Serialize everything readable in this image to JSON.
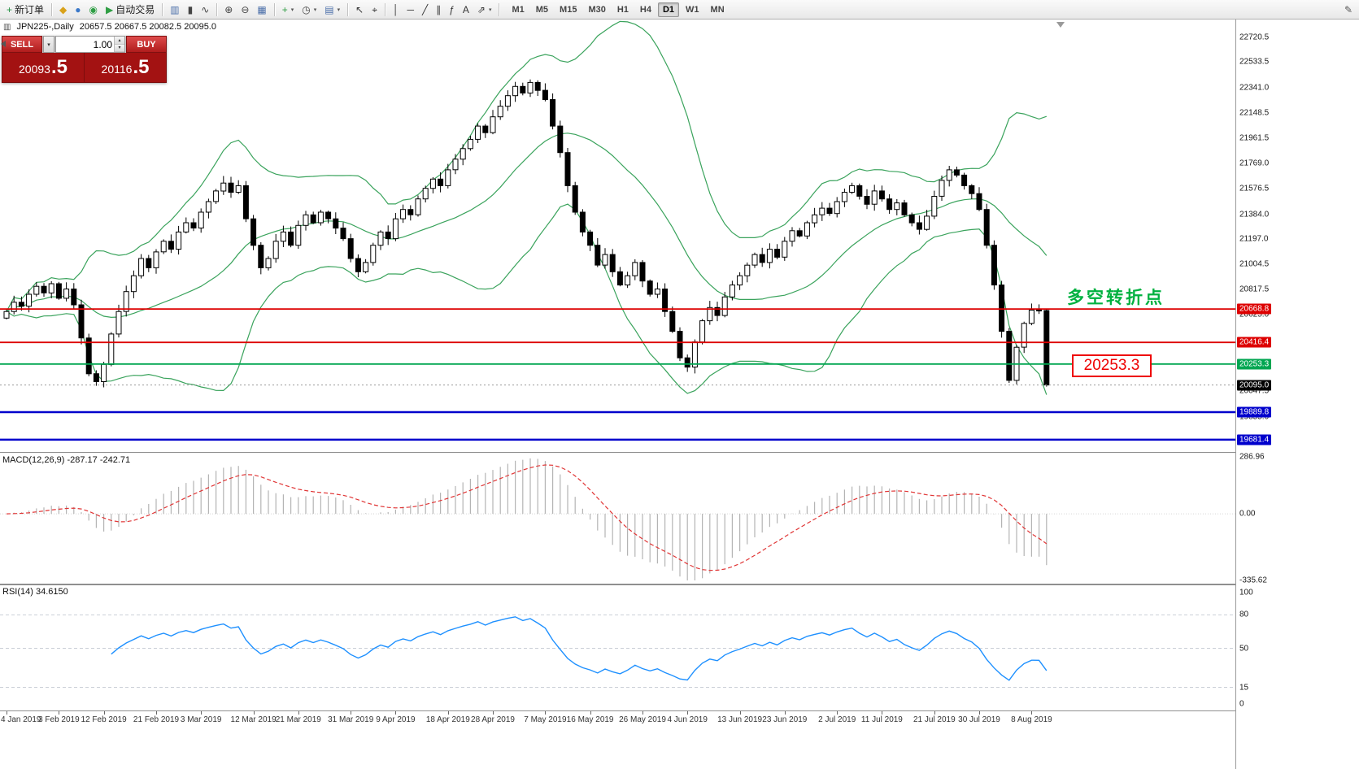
{
  "icons": {
    "caret_down": "▾",
    "caret_up": "▴",
    "chart": "▥"
  },
  "toolbar": {
    "buttons": [
      {
        "name": "new-order-button",
        "glyph": "+",
        "color": "#1f8f3f",
        "label": "新订单"
      },
      {
        "type": "sep"
      },
      {
        "name": "symbols-button",
        "glyph": "◆",
        "color": "#d9a21b"
      },
      {
        "name": "market-watch-button",
        "glyph": "●",
        "color": "#3a78c9"
      },
      {
        "name": "strategy-tester-button",
        "glyph": "◉",
        "color": "#2e9e44"
      },
      {
        "name": "auto-trading-button",
        "glyph": "▶",
        "color": "#2f9e44",
        "label": "自动交易"
      },
      {
        "type": "sep"
      },
      {
        "name": "bar-chart-button",
        "glyph": "▥",
        "color": "#4a6ea9"
      },
      {
        "name": "candlestick-chart-button",
        "glyph": "▮",
        "color": "#444444"
      },
      {
        "name": "line-chart-button",
        "glyph": "∿",
        "color": "#444444"
      },
      {
        "type": "sep"
      },
      {
        "name": "zoom-in-button",
        "glyph": "⊕",
        "color": "#444444"
      },
      {
        "name": "zoom-out-button",
        "glyph": "⊖",
        "color": "#444444"
      },
      {
        "name": "tile-windows-button",
        "glyph": "▦",
        "color": "#4a6ea9"
      },
      {
        "type": "sep"
      },
      {
        "name": "indicators-button",
        "glyph": "+",
        "color": "#2f9e44",
        "caret": true
      },
      {
        "name": "periods-button",
        "glyph": "◷",
        "color": "#444444",
        "caret": true
      },
      {
        "name": "templates-button",
        "glyph": "▤",
        "color": "#4a6ea9",
        "caret": true
      },
      {
        "type": "sep"
      },
      {
        "name": "cursor-button",
        "glyph": "↖",
        "color": "#333333"
      },
      {
        "name": "crosshair-button",
        "glyph": "⌖",
        "color": "#333333"
      },
      {
        "type": "sep"
      },
      {
        "name": "vertical-line-button",
        "glyph": "│",
        "color": "#333333"
      },
      {
        "name": "horizontal-line-button",
        "glyph": "─",
        "color": "#333333"
      },
      {
        "name": "trendline-button",
        "glyph": "╱",
        "color": "#333333"
      },
      {
        "name": "channel-button",
        "glyph": "∥",
        "color": "#333333"
      },
      {
        "name": "fibonacci-button",
        "glyph": "ƒ",
        "color": "#333333"
      },
      {
        "name": "text-button",
        "glyph": "A",
        "color": "#333333"
      },
      {
        "name": "arrows-button",
        "glyph": "⇗",
        "color": "#333333",
        "caret": true
      },
      {
        "type": "sep"
      }
    ],
    "timeframes": [
      "M1",
      "M5",
      "M15",
      "M30",
      "H1",
      "H4",
      "D1",
      "W1",
      "MN"
    ],
    "active_timeframe": "D1",
    "right_buttons": [
      {
        "name": "edit-button",
        "glyph": "✎",
        "color": "#555555"
      }
    ]
  },
  "chart_header": {
    "symbol": "JPN225-,Daily",
    "ohlc": "20657.5 20667.5 20082.5 20095.0"
  },
  "trade_panel": {
    "sell_label": "SELL",
    "buy_label": "BUY",
    "volume": "1.00",
    "sell_price_int": "20093",
    "sell_price_frac": ".5",
    "buy_price_int": "20116",
    "buy_price_frac": ".5"
  },
  "annotations": {
    "turning_point": "多空转折点",
    "price_box": "20253.3"
  },
  "y_axis": {
    "grid_labels": [
      "22720.5",
      "22533.5",
      "22341.0",
      "22148.5",
      "21961.5",
      "21769.0",
      "21576.5",
      "21384.0",
      "21197.0",
      "21004.5",
      "20817.5",
      "20625.0",
      "20432.5",
      "20240.0",
      "20047.5",
      "19855.0",
      "19662.5"
    ]
  },
  "level_labels": [
    {
      "text": "20668.8",
      "price": 20668.8,
      "bg": "#dd0000",
      "line": "#dd0000",
      "width": 1.8
    },
    {
      "text": "20416.4",
      "price": 20416.4,
      "bg": "#dd0000",
      "line": "#dd0000",
      "width": 1.8
    },
    {
      "text": "20253.3",
      "price": 20253.3,
      "bg": "#00a651",
      "line": "#00a651",
      "width": 1.8
    },
    {
      "text": "20095.0",
      "price": 20095.0,
      "bg": "#000000",
      "line": "#999999",
      "width": 1,
      "dashed": true
    },
    {
      "text": "19889.8",
      "price": 19889.8,
      "bg": "#0000cc",
      "line": "#0000cc",
      "width": 2.5
    },
    {
      "text": "19681.4",
      "price": 19681.4,
      "bg": "#0000cc",
      "line": "#0000cc",
      "width": 2.5
    }
  ],
  "macd_panel": {
    "label": "MACD(12,26,9) -287.17 -242.71",
    "scale_max": 286.96,
    "scale_min": -335.62,
    "axis_labels": [
      "286.96",
      "0.00",
      "-335.62"
    ]
  },
  "rsi_panel": {
    "label": "RSI(14) 34.6150",
    "axis_labels": [
      "100",
      "80",
      "50",
      "15",
      "0"
    ],
    "levels": [
      80,
      50,
      15
    ]
  },
  "chart_data": {
    "type": "candlestick",
    "symbol": "JPN225",
    "timeframe": "Daily",
    "ylim": [
      19589,
      22855
    ],
    "first_open": 20600,
    "closes": [
      20650,
      20720,
      20690,
      20780,
      20840,
      20790,
      20860,
      20750,
      20820,
      20700,
      20450,
      20180,
      20120,
      20250,
      20480,
      20650,
      20800,
      20920,
      21050,
      20980,
      21100,
      21180,
      21120,
      21250,
      21320,
      21280,
      21400,
      21480,
      21560,
      21620,
      21550,
      21600,
      21350,
      21150,
      20980,
      21050,
      21180,
      21250,
      21150,
      21300,
      21380,
      21320,
      21400,
      21350,
      21280,
      21200,
      21050,
      20950,
      21020,
      21150,
      21250,
      21200,
      21350,
      21420,
      21380,
      21500,
      21580,
      21650,
      21600,
      21720,
      21800,
      21880,
      21950,
      22050,
      22000,
      22120,
      22200,
      22280,
      22350,
      22300,
      22380,
      22320,
      22250,
      22050,
      21850,
      21600,
      21400,
      21250,
      21150,
      21000,
      21080,
      20950,
      20850,
      20920,
      21020,
      20880,
      20780,
      20820,
      20650,
      20500,
      20300,
      20230,
      20420,
      20580,
      20680,
      20620,
      20760,
      20850,
      20920,
      21000,
      21080,
      21020,
      21120,
      21060,
      21180,
      21260,
      21220,
      21320,
      21380,
      21430,
      21390,
      21480,
      21550,
      21600,
      21520,
      21460,
      21560,
      21500,
      21420,
      21470,
      21380,
      21320,
      21270,
      21370,
      21520,
      21640,
      21720,
      21680,
      21600,
      21540,
      21420,
      21150,
      20850,
      20500,
      20130,
      20380,
      20560,
      20660,
      20657.5,
      20095
    ],
    "last_ohlc": [
      20657.5,
      20667.5,
      20082.5,
      20095.0
    ],
    "x_tick_labels": [
      "4 Jan 2019",
      "3 Feb 2019",
      "12 Feb 2019",
      "21 Feb 2019",
      "3 Mar 2019",
      "12 Mar 2019",
      "21 Mar 2019",
      "31 Mar 2019",
      "9 Apr 2019",
      "18 Apr 2019",
      "28 Apr 2019",
      "7 May 2019",
      "16 May 2019",
      "26 May 2019",
      "4 Jun 2019",
      "13 Jun 2019",
      "23 Jun 2019",
      "2 Jul 2019",
      "11 Jul 2019",
      "21 Jul 2019",
      "30 Jul 2019",
      "8 Aug 2019"
    ],
    "x_tick_bars": [
      0,
      7,
      13,
      20,
      26,
      33,
      39,
      46,
      52,
      59,
      65,
      72,
      78,
      85,
      91,
      98,
      104,
      111,
      117,
      124,
      130,
      137
    ],
    "levels": {
      "red_resistance": [
        20668.8,
        20416.4
      ],
      "green_support": [
        20253.3
      ],
      "blue_support": [
        19889.8,
        19681.4
      ],
      "bid": 20095.0
    },
    "candle_colors": {
      "up_fill": "#ffffff",
      "down_fill": "#000000",
      "outline": "#000000"
    },
    "indicators": {
      "bollinger": {
        "period": 20,
        "deviation": 2,
        "color": "#3aa35c"
      },
      "macd": {
        "fast": 12,
        "slow": 26,
        "signal": 9,
        "value": -287.17,
        "signal_value": -242.71,
        "hist_color": "#b4b4b4",
        "signal_color": "#e03535"
      },
      "rsi": {
        "period": 14,
        "value": 34.615,
        "color": "#1e90ff"
      }
    }
  }
}
